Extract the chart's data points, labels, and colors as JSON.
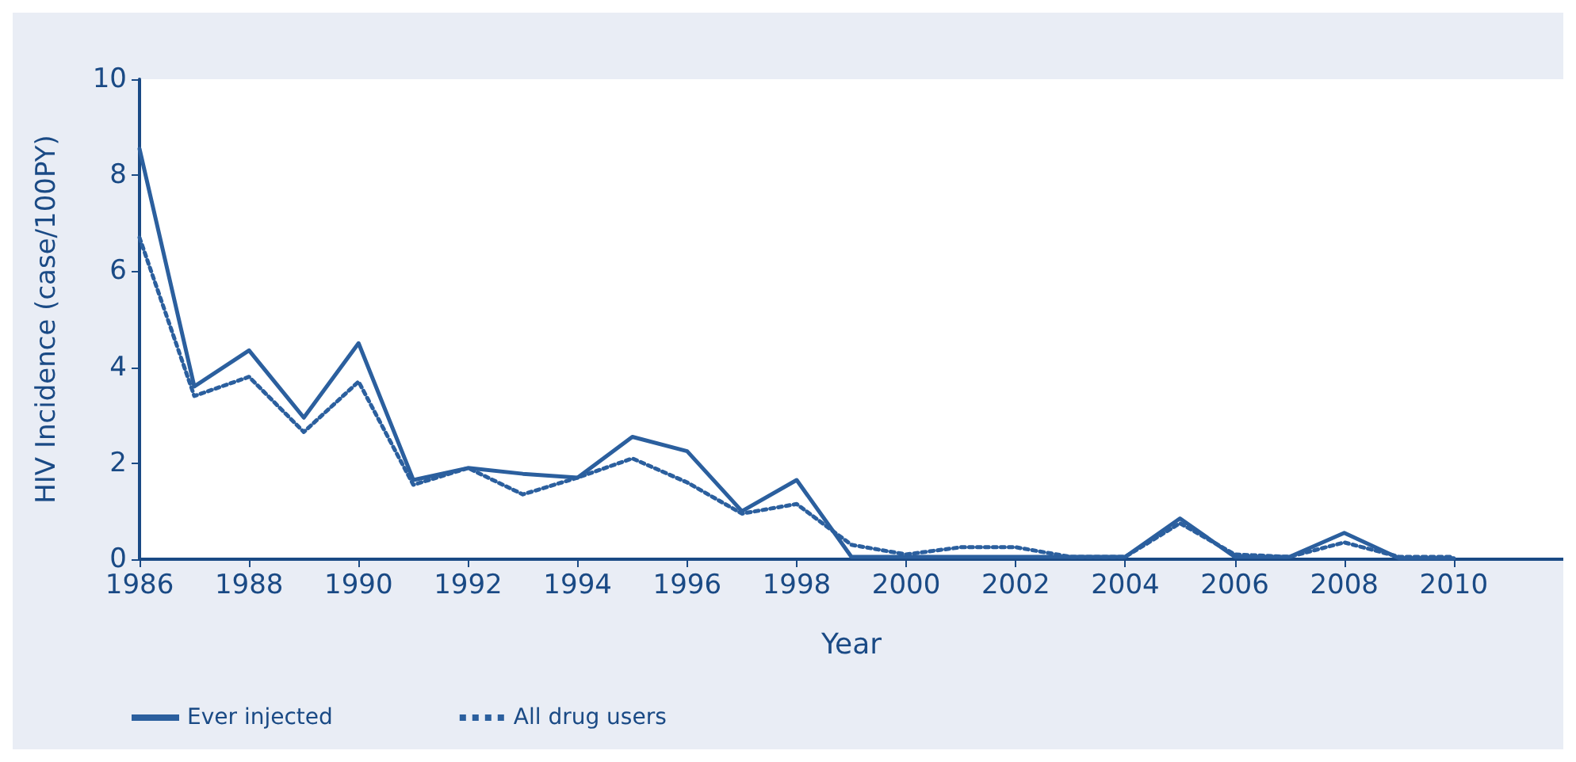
{
  "chart_data": {
    "type": "line",
    "xlabel": "Year",
    "ylabel": "HIV Incidence (case/100PY)",
    "x": [
      1986,
      1987,
      1988,
      1989,
      1990,
      1991,
      1992,
      1993,
      1994,
      1995,
      1996,
      1997,
      1998,
      1999,
      2000,
      2001,
      2002,
      2003,
      2004,
      2005,
      2006,
      2007,
      2008,
      2009,
      2010
    ],
    "series": [
      {
        "name": "Ever injected",
        "color": "#2b5f9e",
        "line_style": "solid",
        "values": [
          8.55,
          3.6,
          4.35,
          2.95,
          4.5,
          1.65,
          1.9,
          1.78,
          1.7,
          2.55,
          2.25,
          1.0,
          1.65,
          0.05,
          0.05,
          0.05,
          0.05,
          0.05,
          0.05,
          0.85,
          0.05,
          0.05,
          0.55,
          0.02,
          0.02
        ]
      },
      {
        "name": "All drug users",
        "color": "#2b5f9e",
        "line_style": "dotted",
        "values": [
          6.7,
          3.4,
          3.8,
          2.65,
          3.7,
          1.55,
          1.9,
          1.35,
          1.7,
          2.1,
          1.6,
          0.95,
          1.15,
          0.3,
          0.1,
          0.25,
          0.25,
          0.05,
          0.05,
          0.75,
          0.1,
          0.05,
          0.35,
          0.05,
          0.05
        ]
      }
    ],
    "xlim": [
      1986,
      2012
    ],
    "xticks": [
      1986,
      1988,
      1990,
      1992,
      1994,
      1996,
      1998,
      2000,
      2002,
      2004,
      2006,
      2008,
      2010
    ],
    "ylim": [
      0,
      10
    ],
    "yticks": [
      0,
      2,
      4,
      6,
      8,
      10
    ],
    "grid": false,
    "legend": "bottom left",
    "marker": "none"
  }
}
